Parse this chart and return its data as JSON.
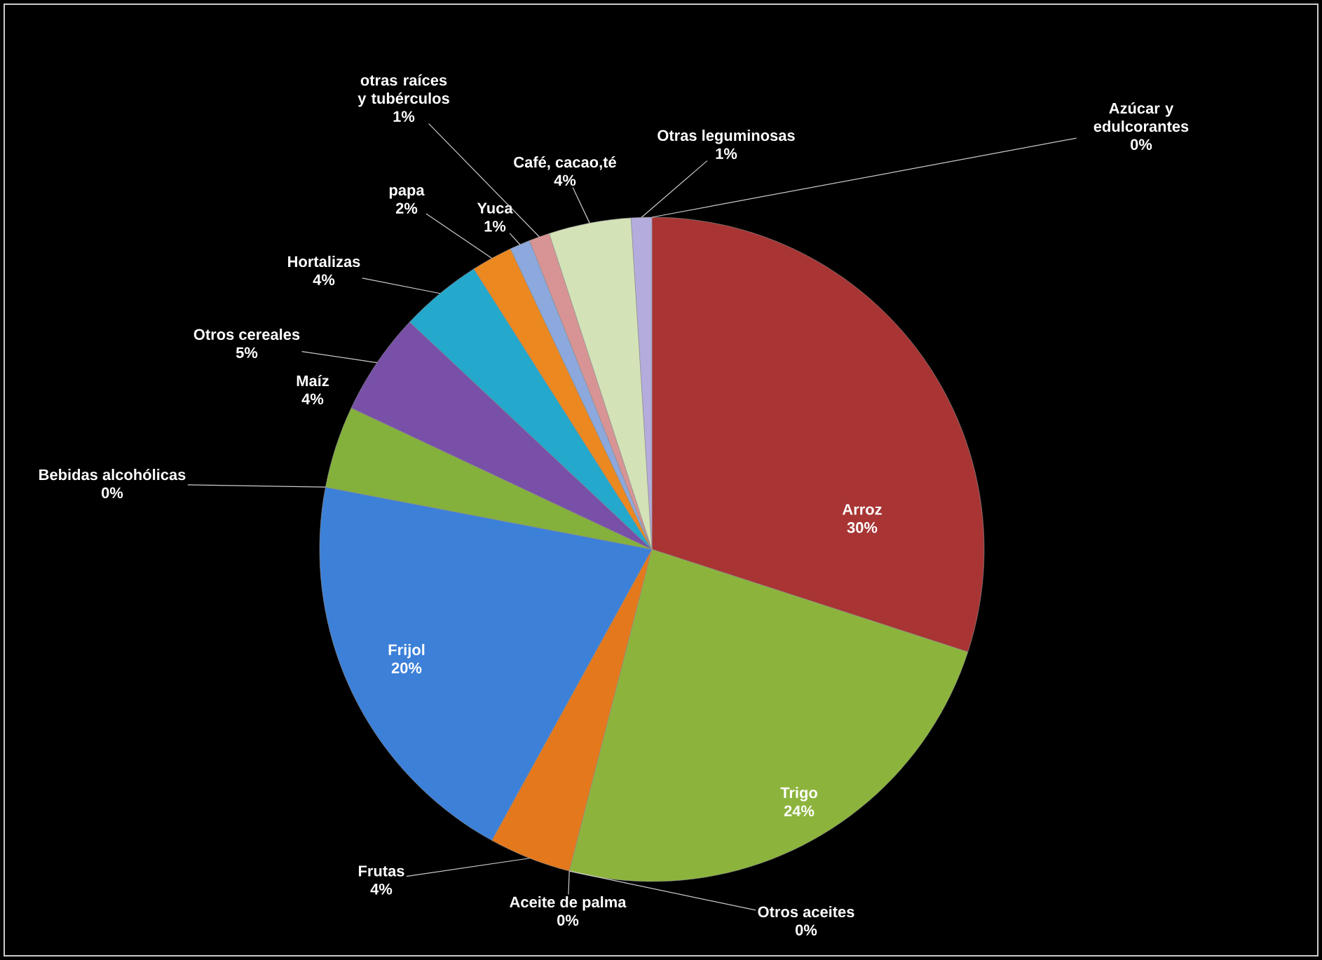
{
  "chart_data": {
    "type": "pie",
    "categories": [
      "Arroz",
      "Trigo",
      "Otros aceites",
      "Aceite de palma",
      "Frutas",
      "Frijol",
      "Bebidas alcohólicas",
      "Maíz",
      "Otros cereales",
      "Hortalizas",
      "papa",
      "Yuca",
      "otras raíces y tubérculos",
      "Café, cacao,té",
      "Otras leguminosas",
      "Azúcar y edulcorantes"
    ],
    "values": [
      30,
      24,
      0,
      0,
      4,
      20,
      0,
      4,
      5,
      4,
      2,
      1,
      1,
      4,
      1,
      0
    ],
    "value_labels": [
      "30%",
      "24%",
      "0%",
      "0%",
      "4%",
      "20%",
      "0%",
      "4%",
      "5%",
      "4%",
      "2%",
      "1%",
      "1%",
      "4%",
      "1%",
      "0%"
    ],
    "colors": [
      "#a83434",
      "#8cb43c",
      "#d8d8d8",
      "#e8e8e8",
      "#e4781c",
      "#3c80d8",
      "#c04040",
      "#84b03c",
      "#7850a8",
      "#24a8cc",
      "#ec8820",
      "#8ca8dc",
      "#d89494",
      "#d4e2b8",
      "#b4acdc",
      "#ececec"
    ]
  }
}
